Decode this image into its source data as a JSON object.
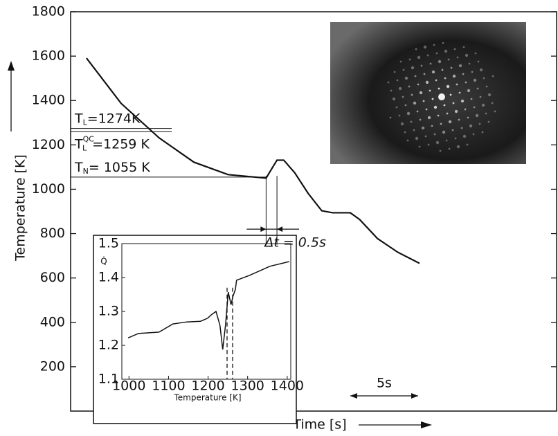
{
  "chart_data": [
    {
      "type": "line",
      "ylabel": "Temperature [K]",
      "xlabel": "Time [s]",
      "xlim": [
        0,
        35.8
      ],
      "ylim": [
        0,
        1800
      ],
      "yticks": [
        200,
        400,
        600,
        800,
        1000,
        1200,
        1400,
        1600,
        1800
      ],
      "series": [
        {
          "color": "#111111",
          "x": [
            1.17,
            3.72,
            6.53,
            9.08,
            11.6,
            14.4,
            14.8,
            15.2,
            15.7,
            16.5,
            17.5,
            18.5,
            19.3,
            20.6,
            21.3,
            22.6,
            24.1,
            25.7
          ],
          "values": [
            1591,
            1387,
            1231,
            1122,
            1066,
            1050,
            1091,
            1131,
            1131,
            1075,
            981,
            903,
            894,
            894,
            863,
            778,
            716,
            666
          ]
        }
      ],
      "annotations": [
        {
          "value": 1274,
          "base": "T",
          "sub": "L",
          "label": "=1274K"
        },
        {
          "value": 1259,
          "base": "T",
          "sub": "L",
          "sup": "QC",
          "label": "=1259 K"
        },
        {
          "value": 1055,
          "base": "T",
          "sub": "N",
          "label": "= 1055 K"
        }
      ],
      "delta_t": {
        "label": "Δt = 0.5s",
        "x": [
          14.4,
          15.2
        ]
      },
      "scale_bar": {
        "label": "5s",
        "x": [
          20.6,
          25.6
        ]
      }
    },
    {
      "type": "line",
      "ylabel": "Q̇",
      "xlabel": "Temperature [K]",
      "xlim": [
        982,
        1409
      ],
      "ylim": [
        1.1,
        1.5
      ],
      "xticks": [
        1000,
        1100,
        1200,
        1300,
        1400
      ],
      "yticks": [
        1.1,
        1.2,
        1.3,
        1.4,
        1.5
      ],
      "series": [
        {
          "color": "#111111",
          "x": [
            998,
            1024,
            1076,
            1111,
            1146,
            1181,
            1199,
            1208,
            1220,
            1230,
            1237,
            1244,
            1251,
            1258,
            1263,
            1269,
            1272,
            1304,
            1356,
            1405
          ],
          "values": [
            1.222,
            1.235,
            1.239,
            1.263,
            1.269,
            1.271,
            1.28,
            1.29,
            1.3,
            1.259,
            1.188,
            1.259,
            1.357,
            1.32,
            1.345,
            1.365,
            1.392,
            1.406,
            1.433,
            1.447
          ]
        }
      ],
      "vlines": [
        1248,
        1262
      ]
    }
  ]
}
